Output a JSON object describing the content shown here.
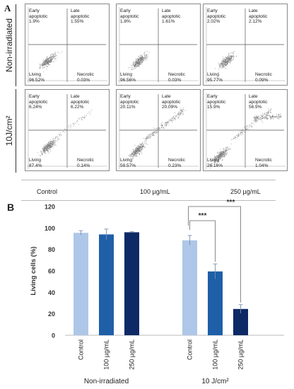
{
  "panel_a": {
    "letter": "A",
    "rows": [
      {
        "label": "Non-irradiated",
        "plots": [
          {
            "early": "Early\napoptotic\n1.9%",
            "late": "Late\napoptotic\n1.55%",
            "living": "Living\n96.52%",
            "necrotic": "Necrotic\n0.03%"
          },
          {
            "early": "Early\napoptotic\n1.8%",
            "late": "Late\napoptotic\n1.61%",
            "living": "Living\n96.56%",
            "necrotic": "Necrotic\n0.03%"
          },
          {
            "early": "Early\napoptotic\n2.02%",
            "late": "Late\napoptotic\n2.12%",
            "living": "Living\n95.77%",
            "necrotic": "Necrotic\n0.09%"
          }
        ]
      },
      {
        "label": "10J/cm²",
        "plots": [
          {
            "early": "Early\napoptotic\n6.24%",
            "late": "Late\napoptotic\n6.22%",
            "living": "Living\n87.4%",
            "necrotic": "Necrotic\n0.14%"
          },
          {
            "early": "Early\napoptotic\n20.11%",
            "late": "Late\napoptotic\n20.09%",
            "living": "Living\n59.57%",
            "necrotic": "Necrotic\n0.23%"
          },
          {
            "early": "Early\napoptotic\n15.9%",
            "late": "Late\napoptotic\n56.9%",
            "living": "Living\n26.16%",
            "necrotic": "Necrotic\n1.04%"
          }
        ]
      }
    ],
    "conditions": [
      "Control",
      "100 µg/mL",
      "250 µg/mL"
    ]
  },
  "chart_data": {
    "type": "bar",
    "panel_letter": "B",
    "ylabel": "Living cells (%)",
    "ylim": [
      0,
      120
    ],
    "yticks": [
      0,
      20,
      40,
      60,
      80,
      100,
      120
    ],
    "grid": false,
    "groups": [
      {
        "name": "Non-irradiated",
        "categories": [
          "Control",
          "100 µg/mL",
          "250 µg/mL"
        ],
        "values": [
          95.5,
          94,
          96
        ],
        "errors": [
          2,
          5,
          0.5
        ]
      },
      {
        "name": "10 J/cm²",
        "categories": [
          "Control",
          "100 µg/mL",
          "250 µg/mL"
        ],
        "values": [
          88.5,
          59.5,
          24.5
        ],
        "errors": [
          4.5,
          7,
          4
        ]
      }
    ],
    "colors": [
      "#aec7e8",
      "#1f5fa8",
      "#0d2a66"
    ],
    "significance": [
      {
        "from": "Control",
        "to": "100 µg/mL",
        "group": "10 J/cm²",
        "label": "***"
      },
      {
        "from": "Control",
        "to": "250 µg/mL",
        "group": "10 J/cm²",
        "label": "***"
      }
    ]
  }
}
